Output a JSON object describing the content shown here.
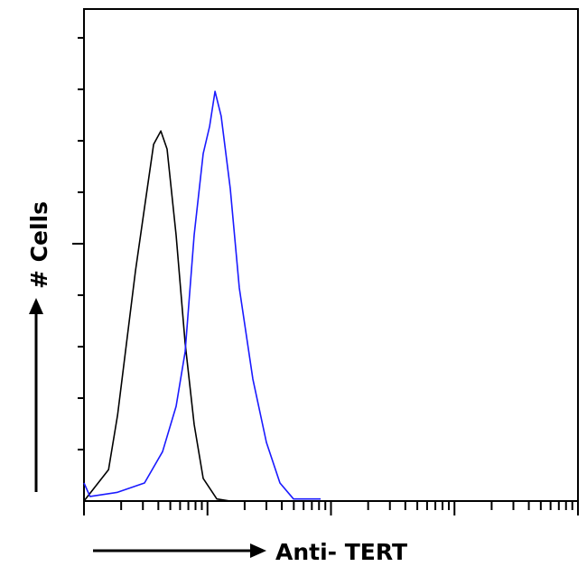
{
  "chart_data": {
    "type": "line",
    "title": "",
    "xlabel": "Anti- TERT",
    "ylabel": "# Cells",
    "x_scale": "log",
    "xlim": [
      1,
      10000
    ],
    "ylim": [
      0,
      95.6
    ],
    "y_tick_step": 10,
    "grid": false,
    "legend": "none",
    "series": [
      {
        "color": "#000000",
        "x": [
          1,
          1.58,
          1.87,
          2.61,
          3.09,
          3.66,
          4.19,
          4.71,
          5.57,
          6.59,
          7.8,
          9.23,
          11.9,
          15.3
        ],
        "y": [
          0,
          6.1,
          16.7,
          44.7,
          57,
          69.3,
          71.9,
          68.4,
          51.7,
          30.7,
          14.9,
          4.4,
          0.4,
          0
        ]
      },
      {
        "color": "#1a1aff",
        "x": [
          1,
          1.12,
          1.87,
          3.09,
          4.33,
          5.57,
          6.59,
          7.8,
          9.23,
          10.4,
          11.5,
          12.9,
          15.3,
          18.1,
          23.3,
          30,
          38.6,
          49.7,
          82.4
        ],
        "y": [
          3.5,
          0.9,
          1.7,
          3.5,
          9.6,
          18.4,
          29,
          51.7,
          67.5,
          72.8,
          79.6,
          74.8,
          60.7,
          41.4,
          23.7,
          11.4,
          3.5,
          0.4,
          0.4
        ]
      }
    ]
  }
}
